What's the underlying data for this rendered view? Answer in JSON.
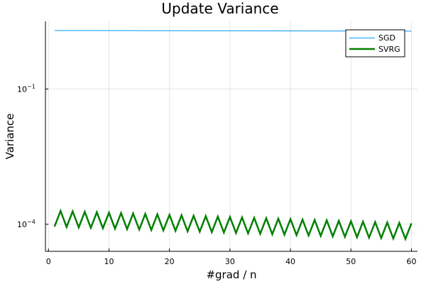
{
  "chart_data": {
    "type": "line",
    "title": "Update Variance",
    "xlabel": "#grad / n",
    "ylabel": "Variance",
    "xlim": [
      -0.5,
      61
    ],
    "ylim_log10": [
      -4.6,
      0.5
    ],
    "y_scale": "log",
    "x_ticks": [
      0,
      10,
      20,
      30,
      40,
      50,
      60
    ],
    "y_ticks": [
      {
        "label_base": "10",
        "label_exp": "−1",
        "log10": -1
      },
      {
        "label_base": "10",
        "label_exp": "−4",
        "log10": -4
      }
    ],
    "grid": true,
    "legend_position": "top-right",
    "series": [
      {
        "name": "SGD",
        "color": "#009af9",
        "line_width": 1,
        "log10_start": 0.296,
        "log10_end": 0.282
      },
      {
        "name": "SVRG",
        "color": "#008000",
        "line_width": 2.5,
        "x_start": 1,
        "x_step": 1,
        "x_end": 60,
        "peak_log10_start": -3.7,
        "peak_log10_end": -3.98,
        "trough_log10_start": -4.05,
        "trough_log10_end": -4.33
      }
    ]
  }
}
